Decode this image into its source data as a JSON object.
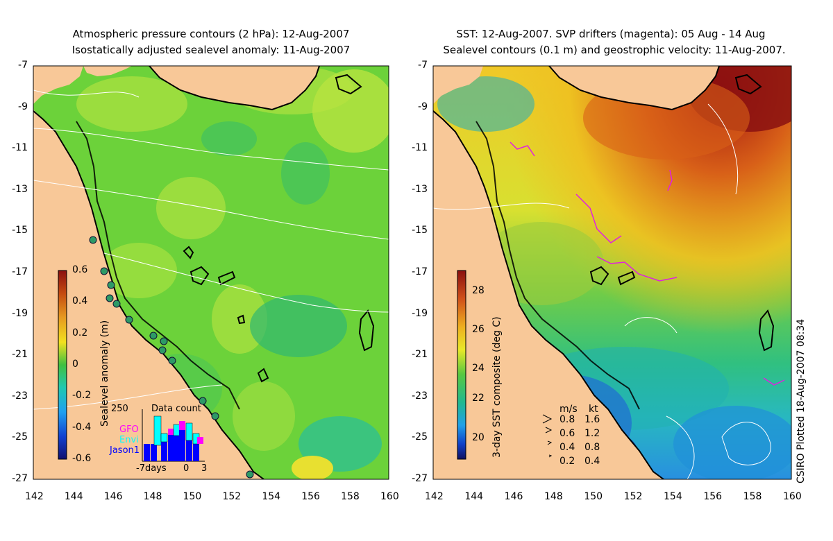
{
  "left_panel": {
    "title_line1": "Atmospheric pressure contours (2 hPa): 12-Aug-2007",
    "title_line2": "Isostatically adjusted sealevel anomaly: 11-Aug-2007",
    "colorbar": {
      "label": "Sealevel anomaly (m)",
      "ticks": [
        "0.6",
        "0.4",
        "0.2",
        "0",
        "-0.2",
        "-0.4",
        "-0.6"
      ]
    },
    "data_count": {
      "title": "Data count",
      "ymax_label": "250",
      "series": [
        {
          "name": "GFO",
          "color": "#ff00ff"
        },
        {
          "name": "Envi",
          "color": "#00ffff"
        },
        {
          "name": "Jason1",
          "color": "#0000ff"
        }
      ],
      "x_label_days": "-7days",
      "x_label_0": "0",
      "x_label_3": "3"
    }
  },
  "right_panel": {
    "title_line1": "SST: 12-Aug-2007. SVP drifters (magenta): 05 Aug - 14 Aug",
    "title_line2": "Sealevel contours (0.1 m) and geostrophic velocity: 11-Aug-2007.",
    "colorbar": {
      "label": "3-day SST composite (deg C)",
      "ticks": [
        "28",
        "26",
        "24",
        "22",
        "20"
      ]
    },
    "velocity_legend": {
      "header_ms": "m/s",
      "header_kt": "kt",
      "rows": [
        {
          "ms": "0.8",
          "kt": "1.6"
        },
        {
          "ms": "0.6",
          "kt": "1.2"
        },
        {
          "ms": "0.4",
          "kt": "0.8"
        },
        {
          "ms": "0.2",
          "kt": "0.4"
        }
      ]
    },
    "credit": "CSIRO Plotted 18-Aug-2007 08:34"
  },
  "axes": {
    "lat_ticks": [
      "-7",
      "-9",
      "-11",
      "-13",
      "-15",
      "-17",
      "-19",
      "-21",
      "-23",
      "-25",
      "-27"
    ],
    "lon_ticks": [
      "142",
      "144",
      "146",
      "148",
      "150",
      "152",
      "154",
      "156",
      "158",
      "160"
    ]
  },
  "colors": {
    "land": "#f8c898",
    "ocean_left": "#6cd23a",
    "ocean_left_light": "#a0e040",
    "ocean_left_dark": "#2fb85a"
  }
}
